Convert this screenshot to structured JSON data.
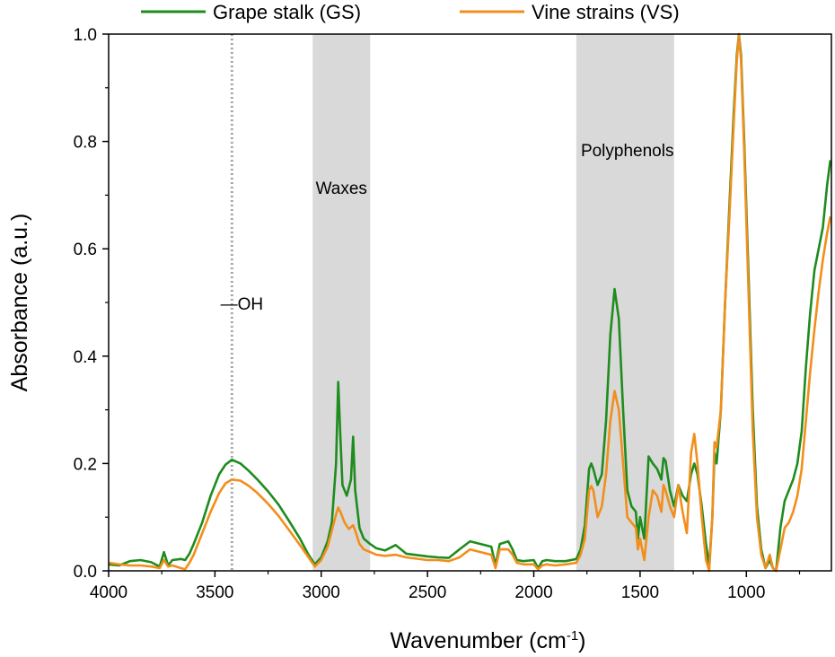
{
  "chart_data": {
    "type": "line",
    "xlabel_main": "Wavenumber (cm",
    "xlabel_sup": "-1",
    "xlabel_close": ")",
    "ylabel": "Absorbance (a.u.)",
    "xlim": [
      4000,
      600
    ],
    "ylim": [
      0,
      1.0
    ],
    "x_reversed": true,
    "x_ticks": [
      4000,
      3500,
      3000,
      2500,
      2000,
      1500,
      1000
    ],
    "x_tick_labels": [
      "4000",
      "3500",
      "3000",
      "2500",
      "2000",
      "1500",
      "1000"
    ],
    "y_ticks": [
      0,
      0.2,
      0.4,
      0.6,
      0.8,
      1.0
    ],
    "y_tick_labels": [
      "0.0",
      "0.2",
      "0.4",
      "0.6",
      "0.8",
      "1.0"
    ],
    "legend_position": "top-outside",
    "shaded_regions": [
      {
        "label": "Waxes",
        "from": 3040,
        "to": 2770
      },
      {
        "label": "Polyphenols",
        "from": 1800,
        "to": 1340
      }
    ],
    "reference_lines": [
      {
        "label": "—OH",
        "x": 3420,
        "style": "dotted"
      }
    ],
    "series": [
      {
        "name": "Grape stalk (GS)",
        "color": "#1e8c1e",
        "points": [
          [
            4000,
            0.012
          ],
          [
            3950,
            0.01
          ],
          [
            3900,
            0.018
          ],
          [
            3850,
            0.02
          ],
          [
            3800,
            0.016
          ],
          [
            3760,
            0.008
          ],
          [
            3740,
            0.035
          ],
          [
            3720,
            0.01
          ],
          [
            3700,
            0.02
          ],
          [
            3660,
            0.022
          ],
          [
            3640,
            0.02
          ],
          [
            3620,
            0.032
          ],
          [
            3600,
            0.05
          ],
          [
            3560,
            0.09
          ],
          [
            3520,
            0.14
          ],
          [
            3480,
            0.18
          ],
          [
            3450,
            0.198
          ],
          [
            3420,
            0.207
          ],
          [
            3380,
            0.2
          ],
          [
            3340,
            0.186
          ],
          [
            3300,
            0.17
          ],
          [
            3250,
            0.148
          ],
          [
            3200,
            0.123
          ],
          [
            3150,
            0.092
          ],
          [
            3100,
            0.06
          ],
          [
            3060,
            0.03
          ],
          [
            3030,
            0.012
          ],
          [
            3000,
            0.025
          ],
          [
            2970,
            0.055
          ],
          [
            2950,
            0.09
          ],
          [
            2930,
            0.2
          ],
          [
            2920,
            0.352
          ],
          [
            2910,
            0.25
          ],
          [
            2900,
            0.16
          ],
          [
            2880,
            0.14
          ],
          [
            2860,
            0.17
          ],
          [
            2850,
            0.25
          ],
          [
            2840,
            0.15
          ],
          [
            2820,
            0.08
          ],
          [
            2800,
            0.06
          ],
          [
            2770,
            0.05
          ],
          [
            2740,
            0.042
          ],
          [
            2700,
            0.038
          ],
          [
            2650,
            0.048
          ],
          [
            2600,
            0.032
          ],
          [
            2500,
            0.027
          ],
          [
            2450,
            0.025
          ],
          [
            2400,
            0.024
          ],
          [
            2350,
            0.04
          ],
          [
            2300,
            0.055
          ],
          [
            2250,
            0.05
          ],
          [
            2200,
            0.045
          ],
          [
            2180,
            0.01
          ],
          [
            2160,
            0.05
          ],
          [
            2120,
            0.055
          ],
          [
            2100,
            0.04
          ],
          [
            2080,
            0.02
          ],
          [
            2050,
            0.018
          ],
          [
            2000,
            0.02
          ],
          [
            1980,
            0.005
          ],
          [
            1960,
            0.018
          ],
          [
            1940,
            0.02
          ],
          [
            1900,
            0.018
          ],
          [
            1850,
            0.018
          ],
          [
            1800,
            0.022
          ],
          [
            1780,
            0.04
          ],
          [
            1760,
            0.085
          ],
          [
            1740,
            0.19
          ],
          [
            1730,
            0.2
          ],
          [
            1720,
            0.19
          ],
          [
            1700,
            0.16
          ],
          [
            1680,
            0.18
          ],
          [
            1660,
            0.28
          ],
          [
            1640,
            0.44
          ],
          [
            1620,
            0.525
          ],
          [
            1600,
            0.47
          ],
          [
            1580,
            0.3
          ],
          [
            1560,
            0.15
          ],
          [
            1540,
            0.12
          ],
          [
            1520,
            0.11
          ],
          [
            1510,
            0.06
          ],
          [
            1500,
            0.1
          ],
          [
            1480,
            0.06
          ],
          [
            1460,
            0.213
          ],
          [
            1440,
            0.2
          ],
          [
            1420,
            0.19
          ],
          [
            1400,
            0.17
          ],
          [
            1390,
            0.21
          ],
          [
            1380,
            0.205
          ],
          [
            1360,
            0.15
          ],
          [
            1340,
            0.12
          ],
          [
            1320,
            0.16
          ],
          [
            1300,
            0.14
          ],
          [
            1280,
            0.13
          ],
          [
            1260,
            0.18
          ],
          [
            1245,
            0.2
          ],
          [
            1230,
            0.18
          ],
          [
            1210,
            0.12
          ],
          [
            1190,
            0.05
          ],
          [
            1175,
            0.01
          ],
          [
            1160,
            0.1
          ],
          [
            1150,
            0.22
          ],
          [
            1140,
            0.2
          ],
          [
            1120,
            0.3
          ],
          [
            1100,
            0.5
          ],
          [
            1080,
            0.68
          ],
          [
            1060,
            0.85
          ],
          [
            1045,
            0.96
          ],
          [
            1035,
            1.0
          ],
          [
            1025,
            0.96
          ],
          [
            1010,
            0.8
          ],
          [
            990,
            0.55
          ],
          [
            970,
            0.3
          ],
          [
            950,
            0.12
          ],
          [
            930,
            0.04
          ],
          [
            910,
            0.005
          ],
          [
            890,
            0.02
          ],
          [
            875,
            0.005
          ],
          [
            860,
            0.0
          ],
          [
            840,
            0.08
          ],
          [
            820,
            0.13
          ],
          [
            800,
            0.15
          ],
          [
            780,
            0.17
          ],
          [
            760,
            0.2
          ],
          [
            740,
            0.26
          ],
          [
            720,
            0.38
          ],
          [
            700,
            0.48
          ],
          [
            680,
            0.56
          ],
          [
            660,
            0.6
          ],
          [
            640,
            0.64
          ],
          [
            620,
            0.72
          ],
          [
            605,
            0.765
          ]
        ]
      },
      {
        "name": "Vine strains (VS)",
        "color": "#f28e1b",
        "points": [
          [
            4000,
            0.015
          ],
          [
            3950,
            0.012
          ],
          [
            3900,
            0.01
          ],
          [
            3850,
            0.01
          ],
          [
            3800,
            0.008
          ],
          [
            3760,
            0.005
          ],
          [
            3740,
            0.02
          ],
          [
            3720,
            0.008
          ],
          [
            3700,
            0.01
          ],
          [
            3660,
            0.005
          ],
          [
            3640,
            0.003
          ],
          [
            3620,
            0.015
          ],
          [
            3600,
            0.03
          ],
          [
            3560,
            0.07
          ],
          [
            3520,
            0.11
          ],
          [
            3480,
            0.145
          ],
          [
            3450,
            0.163
          ],
          [
            3420,
            0.17
          ],
          [
            3380,
            0.168
          ],
          [
            3340,
            0.158
          ],
          [
            3300,
            0.145
          ],
          [
            3250,
            0.125
          ],
          [
            3200,
            0.102
          ],
          [
            3150,
            0.075
          ],
          [
            3100,
            0.048
          ],
          [
            3060,
            0.025
          ],
          [
            3030,
            0.008
          ],
          [
            3000,
            0.02
          ],
          [
            2970,
            0.045
          ],
          [
            2950,
            0.075
          ],
          [
            2930,
            0.105
          ],
          [
            2920,
            0.118
          ],
          [
            2910,
            0.11
          ],
          [
            2890,
            0.09
          ],
          [
            2870,
            0.078
          ],
          [
            2850,
            0.085
          ],
          [
            2840,
            0.075
          ],
          [
            2820,
            0.05
          ],
          [
            2800,
            0.04
          ],
          [
            2770,
            0.035
          ],
          [
            2740,
            0.03
          ],
          [
            2700,
            0.028
          ],
          [
            2650,
            0.03
          ],
          [
            2600,
            0.025
          ],
          [
            2500,
            0.02
          ],
          [
            2450,
            0.02
          ],
          [
            2400,
            0.018
          ],
          [
            2350,
            0.025
          ],
          [
            2300,
            0.04
          ],
          [
            2250,
            0.035
          ],
          [
            2200,
            0.03
          ],
          [
            2180,
            0.005
          ],
          [
            2160,
            0.04
          ],
          [
            2120,
            0.04
          ],
          [
            2100,
            0.03
          ],
          [
            2080,
            0.015
          ],
          [
            2050,
            0.012
          ],
          [
            2000,
            0.012
          ],
          [
            1980,
            0.003
          ],
          [
            1960,
            0.01
          ],
          [
            1940,
            0.012
          ],
          [
            1900,
            0.01
          ],
          [
            1850,
            0.012
          ],
          [
            1800,
            0.015
          ],
          [
            1780,
            0.03
          ],
          [
            1760,
            0.06
          ],
          [
            1740,
            0.15
          ],
          [
            1730,
            0.158
          ],
          [
            1720,
            0.15
          ],
          [
            1700,
            0.1
          ],
          [
            1680,
            0.12
          ],
          [
            1660,
            0.18
          ],
          [
            1640,
            0.28
          ],
          [
            1620,
            0.335
          ],
          [
            1600,
            0.3
          ],
          [
            1580,
            0.2
          ],
          [
            1560,
            0.1
          ],
          [
            1540,
            0.09
          ],
          [
            1520,
            0.08
          ],
          [
            1510,
            0.04
          ],
          [
            1500,
            0.06
          ],
          [
            1480,
            0.02
          ],
          [
            1460,
            0.1
          ],
          [
            1440,
            0.15
          ],
          [
            1420,
            0.14
          ],
          [
            1400,
            0.11
          ],
          [
            1390,
            0.16
          ],
          [
            1380,
            0.15
          ],
          [
            1360,
            0.12
          ],
          [
            1340,
            0.1
          ],
          [
            1320,
            0.16
          ],
          [
            1300,
            0.11
          ],
          [
            1280,
            0.07
          ],
          [
            1260,
            0.22
          ],
          [
            1245,
            0.255
          ],
          [
            1230,
            0.2
          ],
          [
            1210,
            0.1
          ],
          [
            1190,
            0.02
          ],
          [
            1175,
            0.0
          ],
          [
            1160,
            0.1
          ],
          [
            1150,
            0.24
          ],
          [
            1140,
            0.23
          ],
          [
            1120,
            0.3
          ],
          [
            1100,
            0.5
          ],
          [
            1080,
            0.66
          ],
          [
            1060,
            0.83
          ],
          [
            1045,
            0.95
          ],
          [
            1035,
            0.998
          ],
          [
            1025,
            0.95
          ],
          [
            1010,
            0.78
          ],
          [
            990,
            0.52
          ],
          [
            970,
            0.26
          ],
          [
            950,
            0.1
          ],
          [
            930,
            0.03
          ],
          [
            910,
            0.005
          ],
          [
            890,
            0.03
          ],
          [
            875,
            0.005
          ],
          [
            860,
            0.0
          ],
          [
            840,
            0.04
          ],
          [
            820,
            0.08
          ],
          [
            800,
            0.09
          ],
          [
            780,
            0.11
          ],
          [
            760,
            0.14
          ],
          [
            740,
            0.19
          ],
          [
            720,
            0.28
          ],
          [
            700,
            0.37
          ],
          [
            680,
            0.45
          ],
          [
            660,
            0.52
          ],
          [
            640,
            0.58
          ],
          [
            620,
            0.63
          ],
          [
            605,
            0.66
          ]
        ]
      }
    ]
  }
}
